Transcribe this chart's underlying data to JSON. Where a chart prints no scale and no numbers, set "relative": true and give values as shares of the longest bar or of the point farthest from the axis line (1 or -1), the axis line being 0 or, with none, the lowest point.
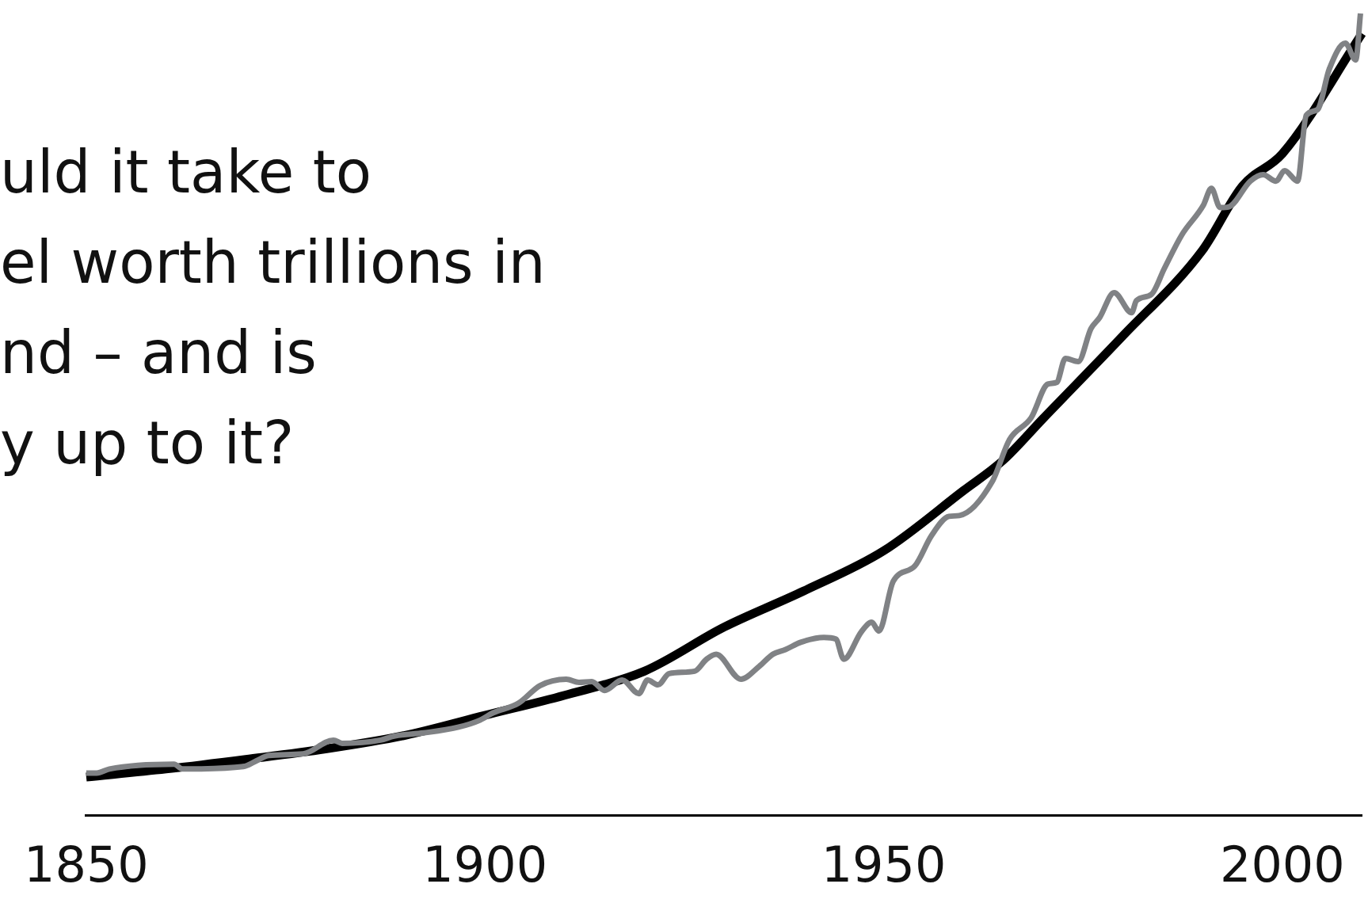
{
  "chart_data": {
    "type": "line",
    "relative": true,
    "marker": "none",
    "line_style": "solid",
    "xlim": [
      1850,
      2010
    ],
    "xticks": [
      1850,
      1900,
      1950,
      2000
    ],
    "annotations": [
      "uld it take to",
      "el worth trillions in",
      "nd – and is",
      "y up to it?"
    ],
    "series": [
      {
        "type": "line",
        "color": "#808285",
        "x": [
          1850.0,
          1851.3,
          1852.9,
          1861.0,
          1862.1,
          1869.7,
          1871.3,
          1872.9,
          1877.2,
          1881.0,
          1882.1,
          1886.9,
          1888.6,
          1892.3,
          1896.6,
          1899.4,
          1901.0,
          1904.2,
          1906.9,
          1910.2,
          1911.8,
          1913.4,
          1915.0,
          1917.2,
          1919.3,
          1920.4,
          1921.7,
          1923.1,
          1926.3,
          1927.8,
          1929.0,
          1932.1,
          1934.4,
          1936.1,
          1937.7,
          1939.6,
          1942.5,
          1944.0,
          1945.0,
          1947.2,
          1948.5,
          1949.4,
          1951.2,
          1953.9,
          1956.0,
          1958.2,
          1959.5,
          1963.6,
          1965.8,
          1968.5,
          1970.6,
          1971.7,
          1972.8,
          1974.4,
          1976.0,
          1977.1,
          1978.9,
          1981.1,
          1981.7,
          1983.6,
          1985.2,
          1987.4,
          1990.1,
          1991.1,
          1992.2,
          1993.3,
          1996.0,
          1997.6,
          1999.2,
          2000.3,
          2001.9,
          2003.0,
          2004.4,
          2005.9,
          2007.9,
          2009.2,
          2009.8
        ],
        "values": [
          0.053,
          0.053,
          0.058,
          0.064,
          0.058,
          0.061,
          0.068,
          0.075,
          0.077,
          0.094,
          0.09,
          0.094,
          0.099,
          0.103,
          0.11,
          0.119,
          0.128,
          0.14,
          0.162,
          0.17,
          0.166,
          0.167,
          0.156,
          0.169,
          0.152,
          0.169,
          0.163,
          0.177,
          0.18,
          0.195,
          0.201,
          0.17,
          0.186,
          0.201,
          0.207,
          0.216,
          0.222,
          0.22,
          0.195,
          0.229,
          0.241,
          0.23,
          0.292,
          0.311,
          0.349,
          0.373,
          0.374,
          0.416,
          0.469,
          0.496,
          0.538,
          0.54,
          0.57,
          0.566,
          0.607,
          0.621,
          0.652,
          0.627,
          0.642,
          0.65,
          0.682,
          0.724,
          0.761,
          0.782,
          0.758,
          0.759,
          0.791,
          0.799,
          0.791,
          0.804,
          0.791,
          0.873,
          0.88,
          0.931,
          0.963,
          0.942,
          1.0
        ]
      },
      {
        "type": "line",
        "color": "#000000",
        "x": [
          1850,
          1860,
          1870,
          1880,
          1890,
          1900,
          1910,
          1920,
          1930,
          1940,
          1950,
          1960,
          1965,
          1970,
          1980,
          1990,
          1995,
          2000,
          2010
        ],
        "values": [
          0.048,
          0.058,
          0.07,
          0.083,
          0.1,
          0.125,
          0.15,
          0.18,
          0.235,
          0.28,
          0.33,
          0.405,
          0.443,
          0.495,
          0.598,
          0.705,
          0.785,
          0.825,
          0.975
        ]
      }
    ]
  }
}
